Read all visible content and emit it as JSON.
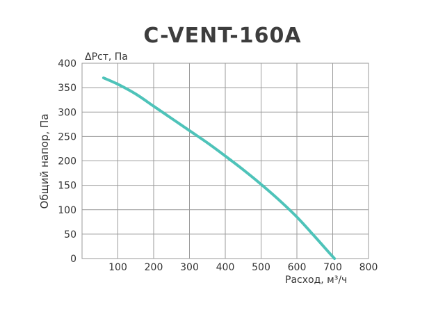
{
  "chart_data": {
    "type": "line",
    "title": "C-VENT-160A",
    "ylabel_top": "ΔPст, Па",
    "ylabel": "Общий напор, Па",
    "xlabel": "Расход, м³/ч",
    "xlim": [
      0,
      800
    ],
    "ylim": [
      0,
      400
    ],
    "x_ticks": [
      100,
      200,
      300,
      400,
      500,
      600,
      700,
      800
    ],
    "y_ticks": [
      0,
      50,
      100,
      150,
      200,
      250,
      300,
      350,
      400
    ],
    "grid": true,
    "series": [
      {
        "color": "#4ec3b9",
        "x": [
          60,
          100,
          150,
          200,
          250,
          300,
          350,
          400,
          450,
          500,
          550,
          600,
          650,
          690,
          705
        ],
        "y": [
          370,
          357,
          337,
          312,
          287,
          262,
          237,
          210,
          182,
          152,
          120,
          85,
          45,
          12,
          0
        ]
      }
    ]
  }
}
